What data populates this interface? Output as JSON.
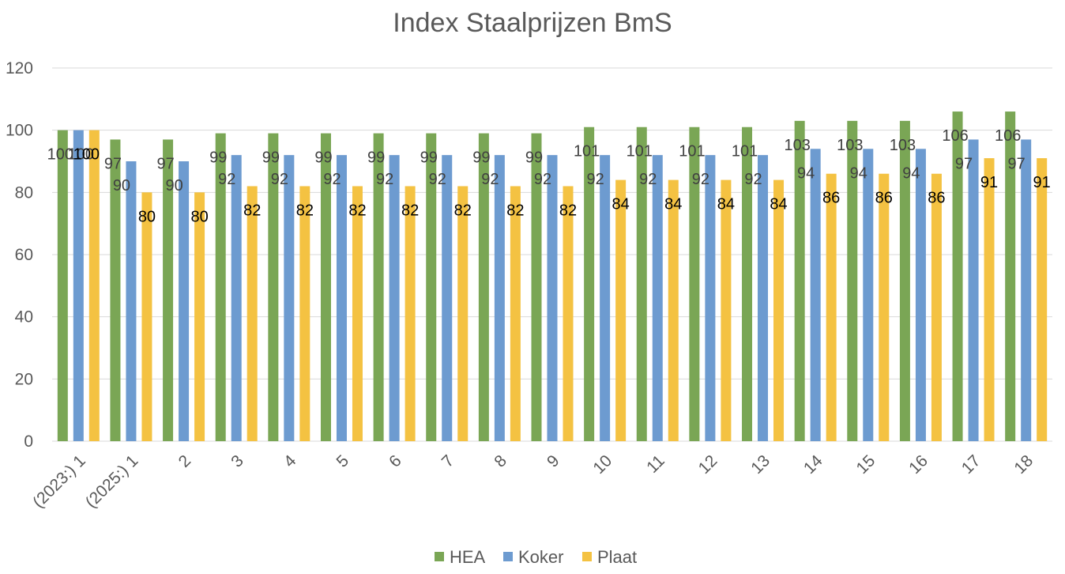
{
  "chart_data": {
    "type": "bar",
    "title": "Index Staalprijzen BmS",
    "xlabel": "",
    "ylabel": "",
    "ylim": [
      0,
      120
    ],
    "yticks": [
      0,
      20,
      40,
      60,
      80,
      100,
      120
    ],
    "grid": true,
    "legend": "bottom",
    "categories": [
      "(2023:) 1",
      "(2025:) 1",
      "2",
      "3",
      "4",
      "5",
      "6",
      "7",
      "8",
      "9",
      "10",
      "11",
      "12",
      "13",
      "14",
      "15",
      "16",
      "17",
      "18"
    ],
    "series": [
      {
        "name": "HEA",
        "color": "#7aa655",
        "values": [
          100,
          97,
          97,
          99,
          99,
          99,
          99,
          99,
          99,
          99,
          101,
          101,
          101,
          101,
          103,
          103,
          103,
          106,
          106
        ]
      },
      {
        "name": "Koker",
        "color": "#6d9bd0",
        "values": [
          100,
          90,
          90,
          92,
          92,
          92,
          92,
          92,
          92,
          92,
          92,
          92,
          92,
          92,
          94,
          94,
          94,
          97,
          97
        ]
      },
      {
        "name": "Plaat",
        "color": "#f4c242",
        "values": [
          100,
          80,
          80,
          82,
          82,
          82,
          82,
          82,
          82,
          82,
          84,
          84,
          84,
          84,
          86,
          86,
          86,
          91,
          91
        ]
      }
    ]
  }
}
